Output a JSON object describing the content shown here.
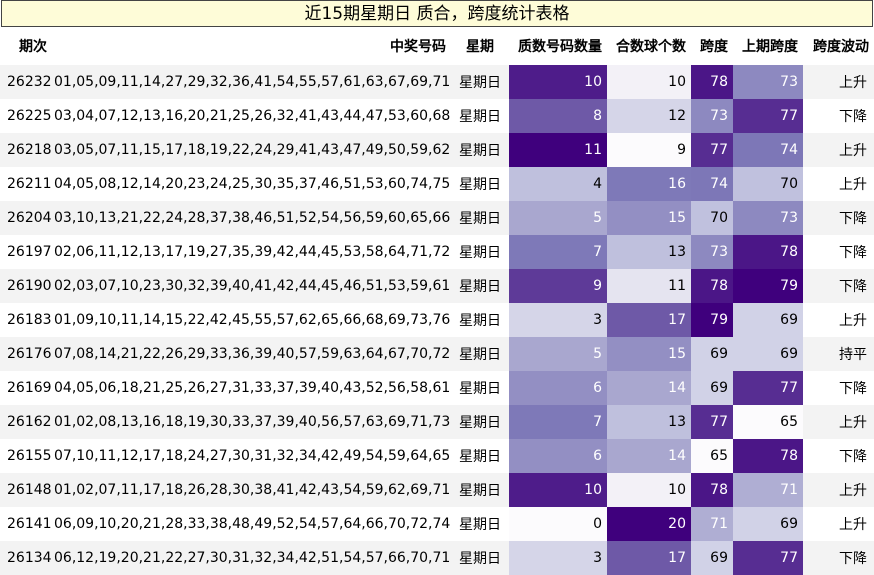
{
  "title": "近15期星期日 质合，跨度统计表格",
  "headers": {
    "issue": "期次",
    "numbers": "中奖号码",
    "weekday": "星期",
    "prime_count": "质数号码数量",
    "composite_count": "合数球个数",
    "span": "跨度",
    "prev_span": "上期跨度",
    "span_trend": "跨度波动"
  },
  "rows": [
    {
      "issue": "26232",
      "numbers": "01,05,09,11,14,27,29,32,36,41,54,55,57,61,63,67,69,71,73,79",
      "weekday": "星期日",
      "prime": 10,
      "composite": 10,
      "span": 78,
      "prev_span": 73,
      "trend": "上升"
    },
    {
      "issue": "26225",
      "numbers": "03,04,07,12,13,16,20,21,25,26,32,41,43,44,47,53,60,68,73,76",
      "weekday": "星期日",
      "prime": 8,
      "composite": 12,
      "span": 73,
      "prev_span": 77,
      "trend": "下降"
    },
    {
      "issue": "26218",
      "numbers": "03,05,07,11,15,17,18,19,22,24,29,41,43,47,49,50,59,62,78,80",
      "weekday": "星期日",
      "prime": 11,
      "composite": 9,
      "span": 77,
      "prev_span": 74,
      "trend": "上升"
    },
    {
      "issue": "26211",
      "numbers": "04,05,08,12,14,20,23,24,25,30,35,37,46,51,53,60,74,75,77,78",
      "weekday": "星期日",
      "prime": 4,
      "composite": 16,
      "span": 74,
      "prev_span": 70,
      "trend": "上升"
    },
    {
      "issue": "26204",
      "numbers": "03,10,13,21,22,24,28,37,38,46,51,52,54,56,59,60,65,66,70,73",
      "weekday": "星期日",
      "prime": 5,
      "composite": 15,
      "span": 70,
      "prev_span": 73,
      "trend": "下降"
    },
    {
      "issue": "26197",
      "numbers": "02,06,11,12,13,17,19,27,35,39,42,44,45,53,58,64,71,72,74,75",
      "weekday": "星期日",
      "prime": 7,
      "composite": 13,
      "span": 73,
      "prev_span": 78,
      "trend": "下降"
    },
    {
      "issue": "26190",
      "numbers": "02,03,07,10,23,30,32,39,40,41,42,44,45,46,51,53,59,61,67,80",
      "weekday": "星期日",
      "prime": 9,
      "composite": 11,
      "span": 78,
      "prev_span": 79,
      "trend": "下降"
    },
    {
      "issue": "26183",
      "numbers": "01,09,10,11,14,15,22,42,45,55,57,62,65,66,68,69,73,76,77,80",
      "weekday": "星期日",
      "prime": 3,
      "composite": 17,
      "span": 79,
      "prev_span": 69,
      "trend": "上升"
    },
    {
      "issue": "26176",
      "numbers": "07,08,14,21,22,26,29,33,36,39,40,57,59,63,64,67,70,72,73,76",
      "weekday": "星期日",
      "prime": 5,
      "composite": 15,
      "span": 69,
      "prev_span": 69,
      "trend": "持平"
    },
    {
      "issue": "26169",
      "numbers": "04,05,06,18,21,25,26,27,31,33,37,39,40,43,52,56,58,61,62,73",
      "weekday": "星期日",
      "prime": 6,
      "composite": 14,
      "span": 69,
      "prev_span": 77,
      "trend": "下降"
    },
    {
      "issue": "26162",
      "numbers": "01,02,08,13,16,18,19,30,33,37,39,40,56,57,63,69,71,73,76,78",
      "weekday": "星期日",
      "prime": 7,
      "composite": 13,
      "span": 77,
      "prev_span": 65,
      "trend": "上升"
    },
    {
      "issue": "26155",
      "numbers": "07,10,11,12,17,18,24,27,30,31,32,34,42,49,54,59,64,65,71,72",
      "weekday": "星期日",
      "prime": 6,
      "composite": 14,
      "span": 65,
      "prev_span": 78,
      "trend": "下降"
    },
    {
      "issue": "26148",
      "numbers": "01,02,07,11,17,18,26,28,30,38,41,42,43,54,59,62,69,71,74,79",
      "weekday": "星期日",
      "prime": 10,
      "composite": 10,
      "span": 78,
      "prev_span": 71,
      "trend": "上升"
    },
    {
      "issue": "26141",
      "numbers": "06,09,10,20,21,28,33,38,48,49,52,54,57,64,66,70,72,74,75,77",
      "weekday": "星期日",
      "prime": 0,
      "composite": 20,
      "span": 71,
      "prev_span": 69,
      "trend": "上升"
    },
    {
      "issue": "26134",
      "numbers": "06,12,19,20,21,22,27,30,31,32,34,42,51,54,57,66,70,71,72,75",
      "weekday": "星期日",
      "prime": 3,
      "composite": 17,
      "span": 69,
      "prev_span": 77,
      "trend": "下降"
    }
  ],
  "heatmap_colors": {
    "light": "#fcfbfd",
    "dark": "#3f007d"
  }
}
